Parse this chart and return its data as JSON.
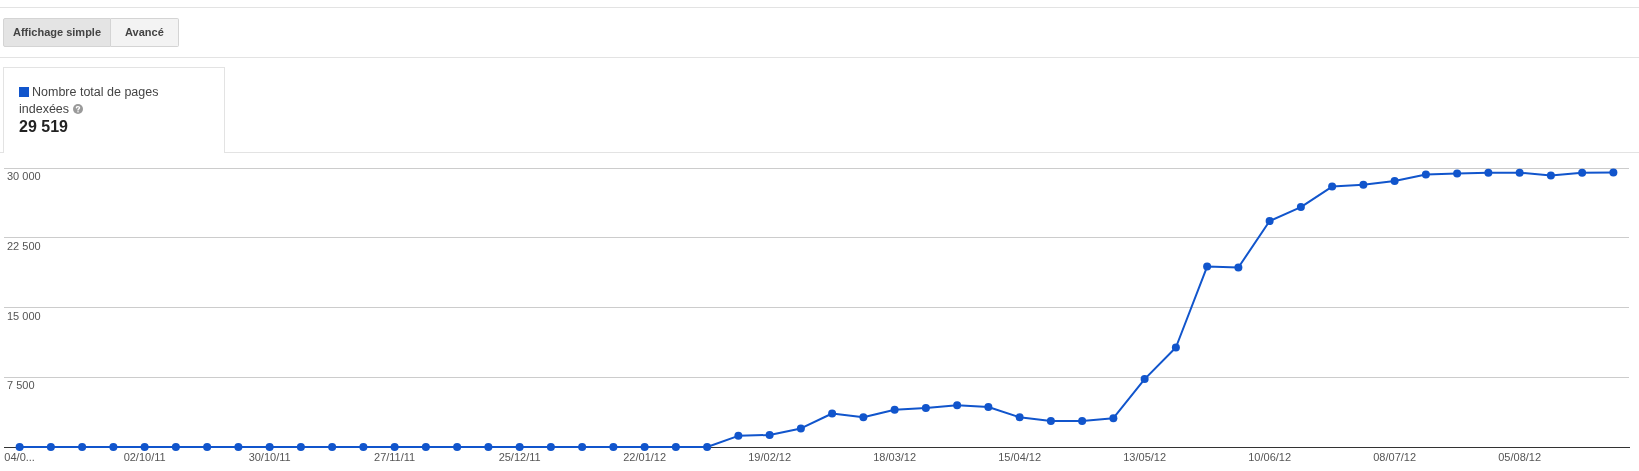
{
  "chart_data": {
    "type": "line",
    "categories": [
      "04/0...",
      null,
      null,
      null,
      "02/10/11",
      null,
      null,
      null,
      "30/10/11",
      null,
      null,
      null,
      "27/11/11",
      null,
      null,
      null,
      "25/12/11",
      null,
      null,
      null,
      "22/01/12",
      null,
      null,
      null,
      "19/02/12",
      null,
      null,
      null,
      "18/03/12",
      null,
      null,
      null,
      "15/04/12",
      null,
      null,
      null,
      "13/05/12",
      null,
      null,
      null,
      "10/06/12",
      null,
      null,
      null,
      "08/07/12",
      null,
      null,
      null,
      "05/08/12",
      null,
      null,
      null
    ],
    "series": [
      {
        "name": "Nombre total de pages indexées",
        "color": "#1155cc",
        "values": [
          0,
          0,
          0,
          0,
          0,
          0,
          0,
          0,
          0,
          0,
          0,
          0,
          0,
          0,
          0,
          0,
          0,
          0,
          0,
          0,
          0,
          0,
          0,
          1200,
          1300,
          2000,
          3600,
          3200,
          4000,
          4200,
          4500,
          4300,
          3200,
          2800,
          2800,
          3100,
          7300,
          10700,
          19400,
          19300,
          24300,
          25800,
          28000,
          28200,
          28600,
          29300,
          29400,
          29500,
          29500,
          29200,
          29500,
          29519
        ]
      }
    ],
    "ylim": [
      0,
      30000
    ],
    "yticks": [
      {
        "value": 7500,
        "label": "7 500"
      },
      {
        "value": 15000,
        "label": "15 000"
      },
      {
        "value": 22500,
        "label": "22 500"
      },
      {
        "value": 30000,
        "label": "30 000"
      }
    ],
    "grid": "y",
    "legend": "top left",
    "marker": "circle",
    "line_style": "solid",
    "annotations": [
      "Affichage simple",
      "Avancé",
      "29 519"
    ]
  }
}
